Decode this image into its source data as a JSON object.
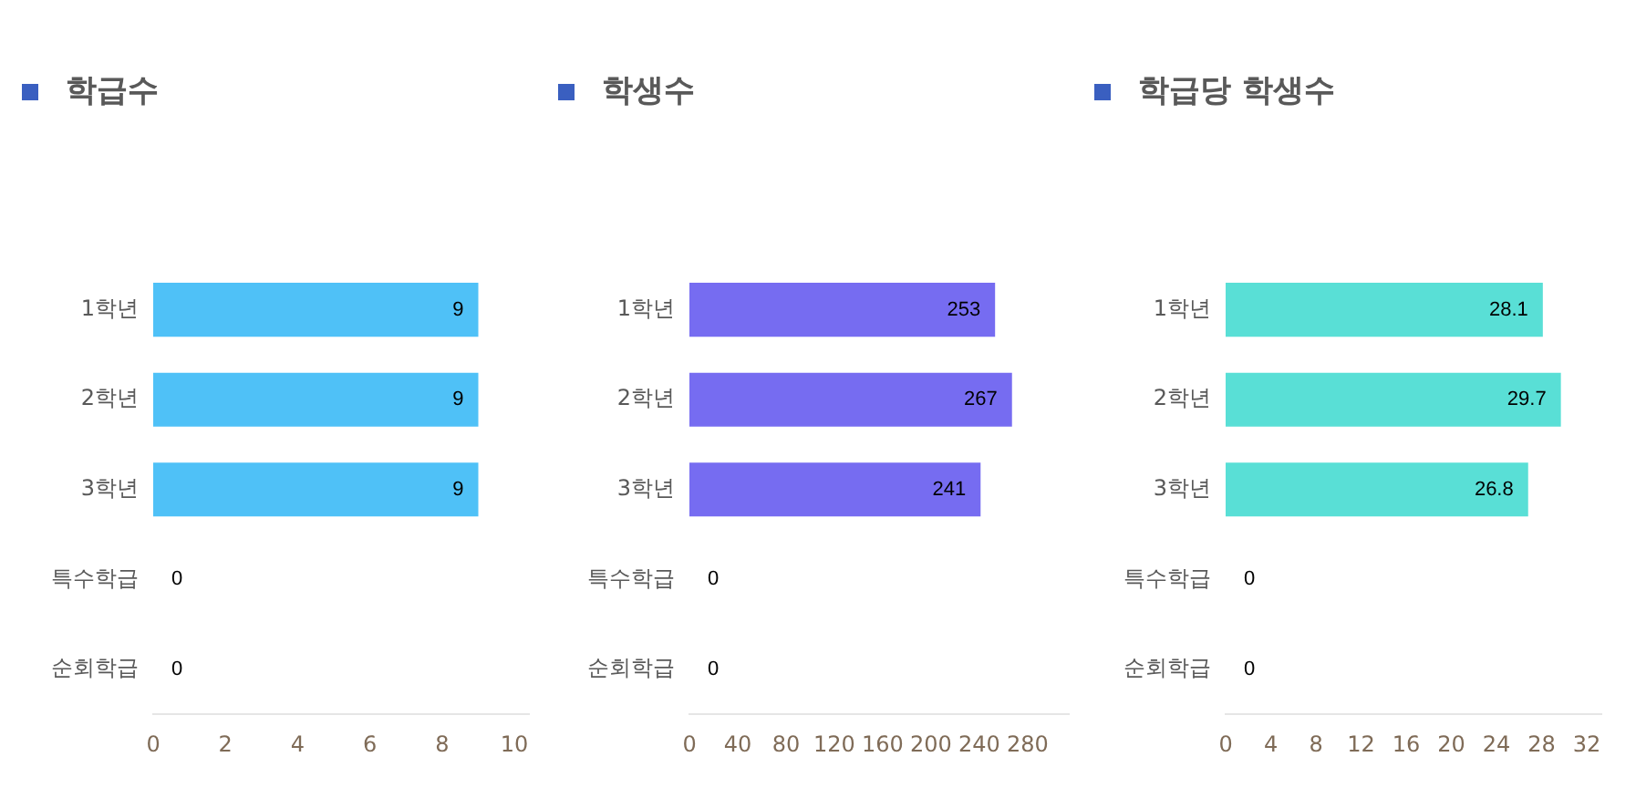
{
  "chart_data": [
    {
      "type": "bar",
      "orientation": "horizontal",
      "title": "학급수",
      "categories": [
        "1학년",
        "2학년",
        "3학년",
        "특수학급",
        "순회학급"
      ],
      "values": [
        9,
        9,
        9,
        0,
        0
      ],
      "color": "#4fc1f7",
      "xlim": [
        0,
        10.4
      ],
      "xticks": [
        0,
        2,
        4,
        6,
        8,
        10
      ],
      "grid": false,
      "data_labels": true
    },
    {
      "type": "bar",
      "orientation": "horizontal",
      "title": "학생수",
      "categories": [
        "1학년",
        "2학년",
        "3학년",
        "특수학급",
        "순회학급"
      ],
      "values": [
        253,
        267,
        241,
        0,
        0
      ],
      "color": "#766cf1",
      "xlim": [
        0,
        314
      ],
      "xticks": [
        0,
        40,
        80,
        120,
        160,
        200,
        240,
        280
      ],
      "grid": false,
      "data_labels": true
    },
    {
      "type": "bar",
      "orientation": "horizontal",
      "title": "학급당 학생수",
      "categories": [
        "1학년",
        "2학년",
        "3학년",
        "특수학급",
        "순회학급"
      ],
      "values": [
        28.1,
        29.7,
        26.8,
        0,
        0
      ],
      "color": "#59dfd6",
      "xlim": [
        0,
        33.3
      ],
      "xticks": [
        0,
        4,
        8,
        12,
        16,
        20,
        24,
        28,
        32
      ],
      "grid": false,
      "data_labels": true
    }
  ]
}
